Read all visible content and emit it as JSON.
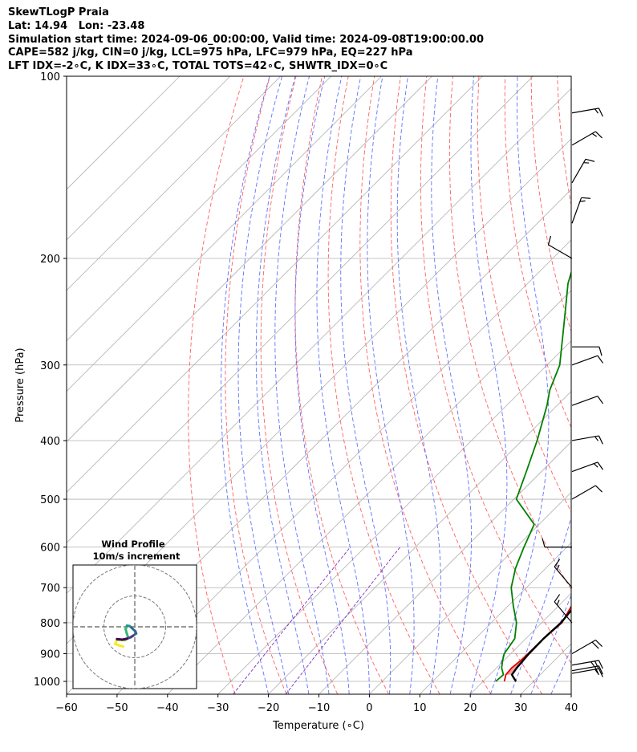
{
  "header": {
    "title": "SkewTLogP Praia",
    "location": "Lat: 14.94   Lon: -23.48",
    "times": "Simulation start time: 2024-09-06_00:00:00, Valid time: 2024-09-08T19:00:00.00",
    "indices1": "CAPE=582 j/kg, CIN=0 j/kg, LCL=975 hPa, LFC=979 hPa, EQ=227 hPa",
    "indices2": "LFT IDX=-2∘C, K IDX=33∘C, TOTAL TOTS=42∘C, SHWTR_IDX=0∘C"
  },
  "chart_data": {
    "type": "line",
    "diagram": "skew-T log-P",
    "xlabel": "Temperature (∘C)",
    "ylabel": "Pressure (hPa)",
    "xlim": [
      -60,
      40
    ],
    "ylim": [
      1050,
      100
    ],
    "y_scale": "log",
    "x_ticks": [
      "−60",
      "−50",
      "−40",
      "−30",
      "−20",
      "−10",
      "0",
      "10",
      "20",
      "30",
      "40"
    ],
    "y_ticks": [
      "100",
      "200",
      "300",
      "400",
      "500",
      "600",
      "700",
      "800",
      "900",
      "1000"
    ],
    "grid": true,
    "colors": {
      "temperature": "#e00000",
      "dewpoint": "#008000",
      "parcel": "#000000",
      "cape_fill": "#f08080",
      "cin_fill": "#7aa8d0",
      "dry_adiabat": "#ff6060",
      "moist_adiabat": "#6070ff",
      "mixing_ratio": "#8030c0",
      "isotherm": "#b0b0b0"
    },
    "series": [
      {
        "key": "temperature",
        "p": [
          1000,
          975,
          950,
          925,
          900,
          850,
          800,
          700,
          600,
          500,
          450,
          400,
          350,
          300,
          250,
          228,
          200,
          180,
          160,
          150,
          140,
          130,
          120,
          115,
          110,
          105,
          100
        ],
        "t": [
          24.2,
          23.2,
          23.0,
          23.3,
          23.4,
          23.5,
          24.0,
          21.0,
          17.0,
          12.0,
          8.5,
          5.0,
          1.0,
          -3.5,
          -9.0,
          -12.0,
          -16.0,
          -20.0,
          -24.5,
          -26.0,
          -27.5,
          -29.0,
          -31.0,
          -33.0,
          -35.0,
          -37.5,
          -40.0
        ]
      },
      {
        "key": "dewpoint",
        "p": [
          1000,
          975,
          950,
          925,
          900,
          850,
          800,
          750,
          700,
          650,
          600,
          550,
          500,
          450,
          400,
          350,
          330,
          300,
          250,
          220,
          200,
          180,
          160,
          145,
          130,
          120,
          110,
          100
        ],
        "t": [
          22.5,
          22.7,
          21.0,
          19.8,
          18.7,
          17.8,
          15.0,
          11.0,
          7.0,
          4.0,
          1.5,
          -1.0,
          -9.5,
          -13.0,
          -17.0,
          -22.0,
          -24.5,
          -27.5,
          -36.0,
          -42.0,
          -45.5,
          -48.5,
          -51.0,
          -52.5,
          -52.0,
          -50.5,
          -48.5,
          -46.0
        ]
      },
      {
        "key": "parcel",
        "p": [
          1000,
          980,
          975,
          950,
          900,
          850,
          800,
          700,
          600,
          500,
          400,
          300,
          250,
          227,
          200,
          180,
          160,
          150,
          140,
          130,
          120,
          110,
          100
        ],
        "t": [
          26.5,
          24.8,
          24.4,
          24.0,
          23.6,
          23.5,
          23.8,
          22.6,
          20.5,
          16.5,
          10.0,
          0.0,
          -7.5,
          -12.0,
          -18.0,
          -23.0,
          -29.0,
          -32.5,
          -36.5,
          -40.5,
          -45.0,
          -50.0,
          -55.0
        ]
      }
    ],
    "wind_barbs": {
      "p": [
        970,
        960,
        940,
        900,
        800,
        700,
        600,
        500,
        450,
        400,
        350,
        300,
        280,
        200,
        175,
        150,
        130,
        115
      ],
      "speed_kt": [
        15,
        20,
        25,
        20,
        15,
        15,
        10,
        10,
        15,
        15,
        10,
        10,
        10,
        10,
        15,
        15,
        15,
        15
      ],
      "direction_deg": [
        80,
        80,
        80,
        60,
        320,
        320,
        270,
        60,
        70,
        80,
        70,
        70,
        90,
        300,
        20,
        30,
        60,
        80
      ]
    },
    "hodograph": {
      "title": "Wind Profile",
      "subtitle": "10m/s increment",
      "u": [
        -4.2,
        -5.6,
        -7.1,
        -6.4,
        -3.5,
        -2.4,
        -2.9,
        -3.3,
        -2.8,
        -1.9,
        -1.2,
        0.2,
        0.5,
        -0.6,
        -1.4,
        -2.8,
        -4.5,
        -6.4
      ],
      "v": [
        7.1,
        6.7,
        6.2,
        4.7,
        4.8,
        3.8,
        2.3,
        0.8,
        -0.4,
        -0.3,
        0.3,
        1.6,
        2.4,
        3.2,
        3.7,
        4.3,
        4.6,
        4.4
      ],
      "colormap": [
        "#fde725",
        "#90d743",
        "#35b779",
        "#21918c",
        "#31688e",
        "#443983",
        "#440154"
      ]
    }
  }
}
